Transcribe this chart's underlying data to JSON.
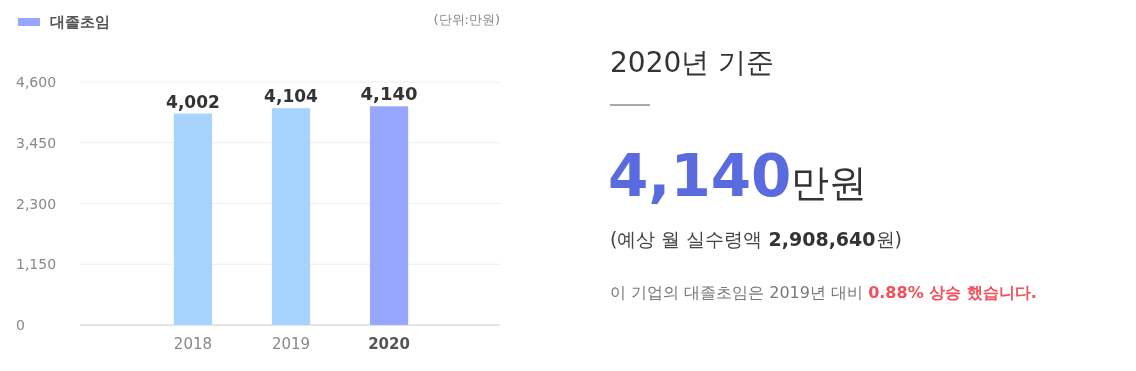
{
  "chart_data": [
    {
      "type": "bar",
      "categories": [
        "2018",
        "2019",
        "2020"
      ],
      "series": [
        {
          "name": "대졸초임",
          "color": "#97a6fe",
          "colors": [
            "#a6d4fe",
            "#a6d4fe",
            "#97a6fe"
          ],
          "values": [
            4002,
            4104,
            4140
          ],
          "value_labels": [
            "4,002",
            "4,104",
            "4,140"
          ]
        }
      ],
      "ylim": [
        0,
        4600
      ],
      "yticks": [
        0,
        {
          "value": 1150,
          "label": "1,150"
        },
        {
          "value": 2300,
          "label": "2,300"
        },
        {
          "value": 3450,
          "label": "3,450"
        },
        {
          "value": 4600,
          "label": "4,600"
        }
      ],
      "grid": "y",
      "legend": "top left",
      "annotations": [
        "(단위:만원)"
      ]
    },
    {
      "type": "other",
      "title": "2020년 기준",
      "annotations": [
        "4,140",
        "만원",
        "(예상 월 실수령액 ",
        "2,908,640",
        "원)",
        "이 기업의 대졸초임은 2019년 대비 ",
        "0.88% 상승 했습니다."
      ]
    }
  ]
}
